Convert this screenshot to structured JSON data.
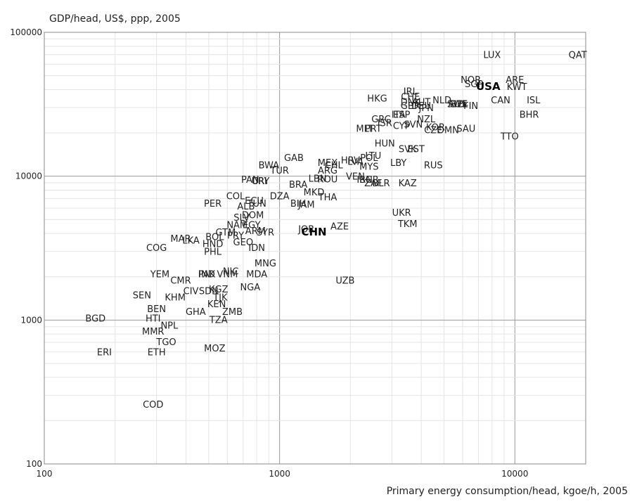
{
  "chart_data": {
    "type": "scatter",
    "title": "",
    "xlabel": "Primary energy consumption/head, kgoe/h, 2005",
    "ylabel": "GDP/head, US$, ppp, 2005",
    "x_scale": "log",
    "y_scale": "log",
    "xlim": [
      100,
      20000
    ],
    "ylim": [
      100,
      100000
    ],
    "x_ticks": [
      "100",
      "1000",
      "10000"
    ],
    "y_ticks": [
      "100",
      "1000",
      "10000",
      "100000"
    ],
    "grid": true,
    "highlighted": [
      "USA",
      "CHN"
    ],
    "points": [
      {
        "label": "LUX",
        "x": 8000,
        "y": 70000
      },
      {
        "label": "QAT",
        "x": 18500,
        "y": 70000
      },
      {
        "label": "NOR",
        "x": 6500,
        "y": 47000
      },
      {
        "label": "ARE",
        "x": 10000,
        "y": 47000
      },
      {
        "label": "SGP",
        "x": 6700,
        "y": 44000
      },
      {
        "label": "USA",
        "x": 7700,
        "y": 42000
      },
      {
        "label": "KWT",
        "x": 10200,
        "y": 42000
      },
      {
        "label": "ISL",
        "x": 12000,
        "y": 34000
      },
      {
        "label": "CAN",
        "x": 8700,
        "y": 34000
      },
      {
        "label": "IRL",
        "x": 3600,
        "y": 39000
      },
      {
        "label": "CHE",
        "x": 3600,
        "y": 36000
      },
      {
        "label": "HKG",
        "x": 2600,
        "y": 35000
      },
      {
        "label": "DNK",
        "x": 3600,
        "y": 33000
      },
      {
        "label": "AUT",
        "x": 4000,
        "y": 33000
      },
      {
        "label": "GBR",
        "x": 3600,
        "y": 31000
      },
      {
        "label": "ITA",
        "x": 3200,
        "y": 27000
      },
      {
        "label": "DEU",
        "x": 4000,
        "y": 31000
      },
      {
        "label": "NLD",
        "x": 4900,
        "y": 34000
      },
      {
        "label": "JPN",
        "x": 4200,
        "y": 30000
      },
      {
        "label": "SWE",
        "x": 5700,
        "y": 32000
      },
      {
        "label": "AUS",
        "x": 5700,
        "y": 32000
      },
      {
        "label": "BEL",
        "x": 5800,
        "y": 32000
      },
      {
        "label": "FIN",
        "x": 6500,
        "y": 31000
      },
      {
        "label": "BHR",
        "x": 11500,
        "y": 27000
      },
      {
        "label": "ESP",
        "x": 3300,
        "y": 27000
      },
      {
        "label": "GRC",
        "x": 2700,
        "y": 25000
      },
      {
        "label": "ISR",
        "x": 2800,
        "y": 23500
      },
      {
        "label": "CYP",
        "x": 3300,
        "y": 22500
      },
      {
        "label": "SVN",
        "x": 3700,
        "y": 23000
      },
      {
        "label": "NZL",
        "x": 4200,
        "y": 25000
      },
      {
        "label": "KOR",
        "x": 4600,
        "y": 22000
      },
      {
        "label": "CZE",
        "x": 4500,
        "y": 21000
      },
      {
        "label": "OMN",
        "x": 5200,
        "y": 21000
      },
      {
        "label": "SAU",
        "x": 6200,
        "y": 21500
      },
      {
        "label": "MLT",
        "x": 2300,
        "y": 21500
      },
      {
        "label": "PRT",
        "x": 2500,
        "y": 21500
      },
      {
        "label": "TTO",
        "x": 9500,
        "y": 19000
      },
      {
        "label": "HUN",
        "x": 2800,
        "y": 17000
      },
      {
        "label": "SVK",
        "x": 3500,
        "y": 15500
      },
      {
        "label": "EST",
        "x": 3800,
        "y": 15500
      },
      {
        "label": "LTU",
        "x": 2500,
        "y": 14000
      },
      {
        "label": "POL",
        "x": 2400,
        "y": 13500
      },
      {
        "label": "HRV",
        "x": 2000,
        "y": 13000
      },
      {
        "label": "LVA",
        "x": 2100,
        "y": 12700
      },
      {
        "label": "MEX",
        "x": 1600,
        "y": 12500
      },
      {
        "label": "CHL",
        "x": 1700,
        "y": 12000
      },
      {
        "label": "LBY",
        "x": 3200,
        "y": 12500
      },
      {
        "label": "MYS",
        "x": 2400,
        "y": 11700
      },
      {
        "label": "RUS",
        "x": 4500,
        "y": 12000
      },
      {
        "label": "GAB",
        "x": 1150,
        "y": 13500
      },
      {
        "label": "BWA",
        "x": 900,
        "y": 12000
      },
      {
        "label": "TUR",
        "x": 1000,
        "y": 11000
      },
      {
        "label": "ARG",
        "x": 1600,
        "y": 11000
      },
      {
        "label": "LBN",
        "x": 1450,
        "y": 9700
      },
      {
        "label": "ROU",
        "x": 1600,
        "y": 9600
      },
      {
        "label": "VEN",
        "x": 2100,
        "y": 10000
      },
      {
        "label": "IRN",
        "x": 2300,
        "y": 9500
      },
      {
        "label": "BGR",
        "x": 2400,
        "y": 9500
      },
      {
        "label": "ZAF",
        "x": 2500,
        "y": 9000
      },
      {
        "label": "BLR",
        "x": 2700,
        "y": 9000
      },
      {
        "label": "KAZ",
        "x": 3500,
        "y": 9000
      },
      {
        "label": "PAN",
        "x": 750,
        "y": 9500
      },
      {
        "label": "CRI",
        "x": 820,
        "y": 9300
      },
      {
        "label": "URY",
        "x": 830,
        "y": 9300
      },
      {
        "label": "BRA",
        "x": 1200,
        "y": 8800
      },
      {
        "label": "MKD",
        "x": 1400,
        "y": 7800
      },
      {
        "label": "THA",
        "x": 1600,
        "y": 7200
      },
      {
        "label": "COL",
        "x": 650,
        "y": 7300
      },
      {
        "label": "DZA",
        "x": 1000,
        "y": 7300
      },
      {
        "label": "PER",
        "x": 520,
        "y": 6500
      },
      {
        "label": "ECU",
        "x": 780,
        "y": 6800
      },
      {
        "label": "TUN",
        "x": 800,
        "y": 6500
      },
      {
        "label": "ALB",
        "x": 720,
        "y": 6200
      },
      {
        "label": "BIH",
        "x": 1200,
        "y": 6500
      },
      {
        "label": "JAM",
        "x": 1300,
        "y": 6400
      },
      {
        "label": "DOM",
        "x": 770,
        "y": 5400
      },
      {
        "label": "SLV",
        "x": 690,
        "y": 5200
      },
      {
        "label": "UKR",
        "x": 3300,
        "y": 5600
      },
      {
        "label": "TKM",
        "x": 3500,
        "y": 4700
      },
      {
        "label": "NAM",
        "x": 660,
        "y": 4600
      },
      {
        "label": "EGY",
        "x": 760,
        "y": 4600
      },
      {
        "label": "AZE",
        "x": 1800,
        "y": 4500
      },
      {
        "label": "ARM",
        "x": 790,
        "y": 4200
      },
      {
        "label": "JOR",
        "x": 1300,
        "y": 4300
      },
      {
        "label": "CHN",
        "x": 1400,
        "y": 4100
      },
      {
        "label": "SYR",
        "x": 870,
        "y": 4100
      },
      {
        "label": "GTM",
        "x": 590,
        "y": 4100
      },
      {
        "label": "PRY",
        "x": 650,
        "y": 3900
      },
      {
        "label": "BOL",
        "x": 530,
        "y": 3800
      },
      {
        "label": "MAR",
        "x": 380,
        "y": 3700
      },
      {
        "label": "LKA",
        "x": 420,
        "y": 3600
      },
      {
        "label": "GEO",
        "x": 700,
        "y": 3500
      },
      {
        "label": "HND",
        "x": 520,
        "y": 3400
      },
      {
        "label": "PHL",
        "x": 520,
        "y": 3000
      },
      {
        "label": "IDN",
        "x": 800,
        "y": 3200
      },
      {
        "label": "COG",
        "x": 300,
        "y": 3200
      },
      {
        "label": "MNG",
        "x": 870,
        "y": 2500
      },
      {
        "label": "NIC",
        "x": 620,
        "y": 2200
      },
      {
        "label": "IND",
        "x": 490,
        "y": 2100
      },
      {
        "label": "PAK",
        "x": 490,
        "y": 2100
      },
      {
        "label": "VNM",
        "x": 600,
        "y": 2100
      },
      {
        "label": "MDA",
        "x": 800,
        "y": 2100
      },
      {
        "label": "YEM",
        "x": 310,
        "y": 2100
      },
      {
        "label": "CMR",
        "x": 380,
        "y": 1900
      },
      {
        "label": "UZB",
        "x": 1900,
        "y": 1900
      },
      {
        "label": "CIV",
        "x": 420,
        "y": 1600
      },
      {
        "label": "SDN",
        "x": 500,
        "y": 1600
      },
      {
        "label": "KGZ",
        "x": 550,
        "y": 1650
      },
      {
        "label": "NGA",
        "x": 750,
        "y": 1700
      },
      {
        "label": "SEN",
        "x": 260,
        "y": 1500
      },
      {
        "label": "TJK",
        "x": 560,
        "y": 1450
      },
      {
        "label": "KHM",
        "x": 360,
        "y": 1450
      },
      {
        "label": "KEN",
        "x": 540,
        "y": 1300
      },
      {
        "label": "BEN",
        "x": 300,
        "y": 1200
      },
      {
        "label": "GHA",
        "x": 440,
        "y": 1150
      },
      {
        "label": "ZMB",
        "x": 630,
        "y": 1150
      },
      {
        "label": "BGD",
        "x": 165,
        "y": 1030
      },
      {
        "label": "HTI",
        "x": 290,
        "y": 1030
      },
      {
        "label": "TZA",
        "x": 550,
        "y": 1010
      },
      {
        "label": "NPL",
        "x": 340,
        "y": 920
      },
      {
        "label": "MMR",
        "x": 290,
        "y": 840
      },
      {
        "label": "TGO",
        "x": 330,
        "y": 710
      },
      {
        "label": "MOZ",
        "x": 530,
        "y": 640
      },
      {
        "label": "ERI",
        "x": 180,
        "y": 600
      },
      {
        "label": "ETH",
        "x": 300,
        "y": 600
      },
      {
        "label": "COD",
        "x": 290,
        "y": 260
      }
    ]
  }
}
